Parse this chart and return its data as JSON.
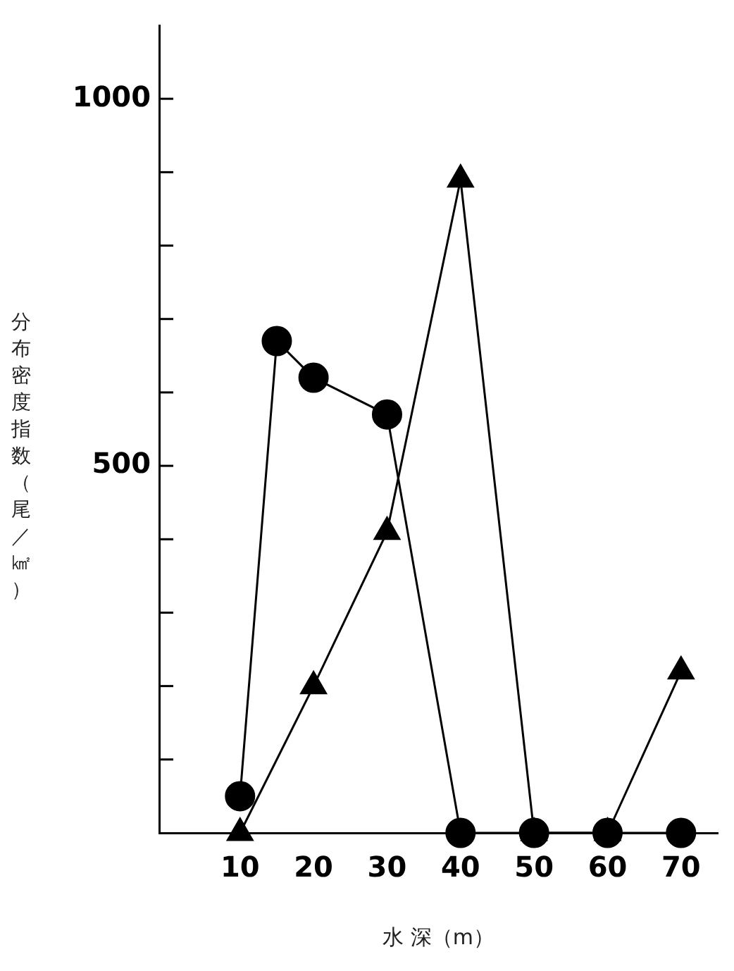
{
  "chart_data": {
    "type": "line",
    "xlabel": "水 深（m）",
    "ylabel": "分布密度指数（尾／㎢）",
    "xlim": [
      -1,
      75
    ],
    "xticks": [
      10,
      20,
      30,
      40,
      50,
      60,
      70
    ],
    "ylim": [
      0,
      1100
    ],
    "yticks": [
      {
        "value": 100,
        "label": null
      },
      {
        "value": 200,
        "label": null
      },
      {
        "value": 300,
        "label": null
      },
      {
        "value": 400,
        "label": null
      },
      500,
      {
        "value": 600,
        "label": null
      },
      {
        "value": 700,
        "label": null
      },
      {
        "value": 800,
        "label": null
      },
      {
        "value": 900,
        "label": null
      },
      1000
    ],
    "grid": false,
    "legend": false,
    "line_style": "solid",
    "series": [
      {
        "color": "#000000",
        "marker": "circle",
        "x": [
          10,
          15,
          20,
          30,
          40,
          50,
          60,
          70
        ],
        "values": [
          50,
          670,
          620,
          570,
          0,
          0,
          0,
          0
        ]
      },
      {
        "color": "#000000",
        "marker": "triangle",
        "x": [
          10,
          20,
          30,
          40,
          50,
          60,
          70
        ],
        "values": [
          0,
          200,
          410,
          890,
          0,
          0,
          220
        ]
      }
    ]
  }
}
